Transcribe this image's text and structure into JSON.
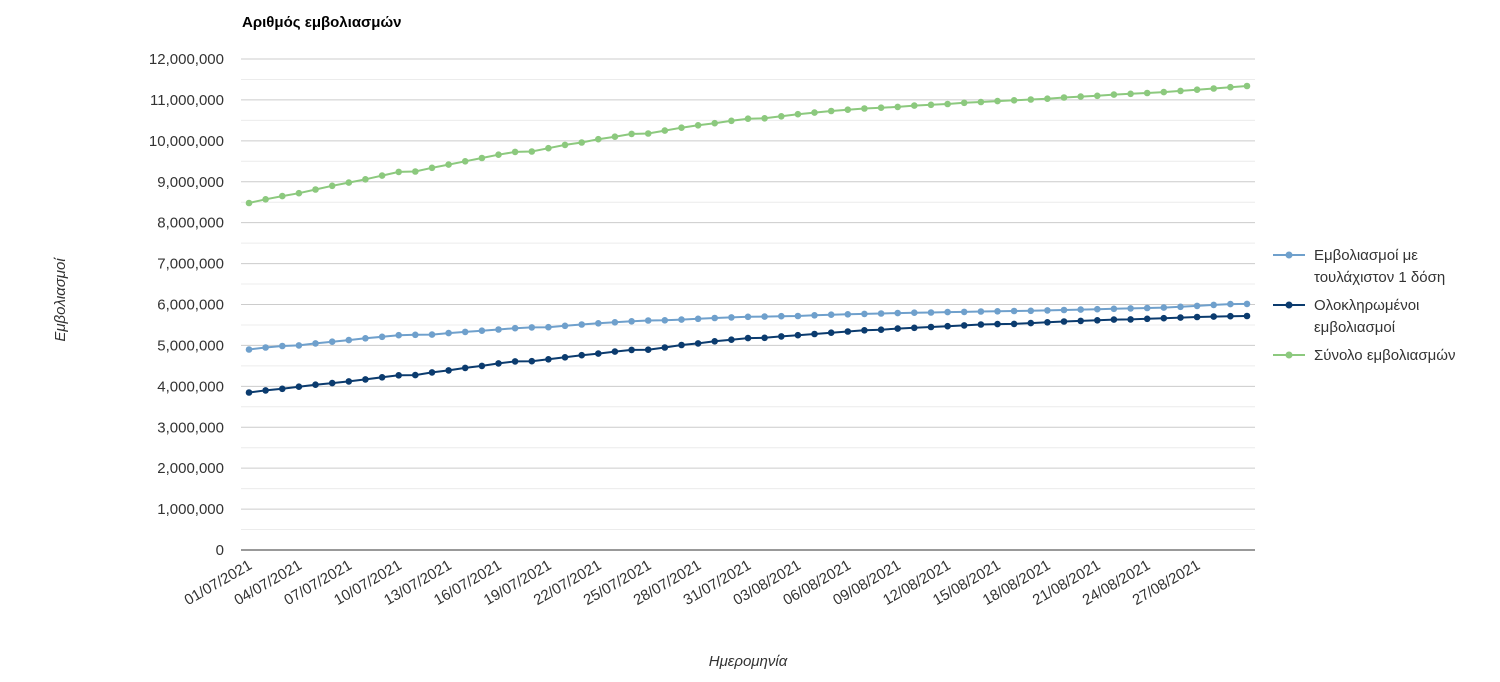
{
  "chart_data": {
    "type": "line",
    "title": "Αριθμός εμβολιασμών",
    "xlabel": "Ημερομηνία",
    "ylabel": "Εμβολιασμοί",
    "ylim": [
      0,
      12000000
    ],
    "y_ticks": [
      0,
      1000000,
      2000000,
      3000000,
      4000000,
      5000000,
      6000000,
      7000000,
      8000000,
      9000000,
      10000000,
      11000000,
      12000000
    ],
    "y_tick_labels": [
      "0",
      "1,000,000",
      "2,000,000",
      "3,000,000",
      "4,000,000",
      "5,000,000",
      "6,000,000",
      "7,000,000",
      "8,000,000",
      "9,000,000",
      "10,000,000",
      "11,000,000",
      "12,000,000"
    ],
    "x": [
      "01/07/2021",
      "02/07/2021",
      "03/07/2021",
      "04/07/2021",
      "05/07/2021",
      "06/07/2021",
      "07/07/2021",
      "08/07/2021",
      "09/07/2021",
      "10/07/2021",
      "11/07/2021",
      "12/07/2021",
      "13/07/2021",
      "14/07/2021",
      "15/07/2021",
      "16/07/2021",
      "17/07/2021",
      "18/07/2021",
      "19/07/2021",
      "20/07/2021",
      "21/07/2021",
      "22/07/2021",
      "23/07/2021",
      "24/07/2021",
      "25/07/2021",
      "26/07/2021",
      "27/07/2021",
      "28/07/2021",
      "29/07/2021",
      "30/07/2021",
      "31/07/2021",
      "01/08/2021",
      "02/08/2021",
      "03/08/2021",
      "04/08/2021",
      "05/08/2021",
      "06/08/2021",
      "07/08/2021",
      "08/08/2021",
      "09/08/2021",
      "10/08/2021",
      "11/08/2021",
      "12/08/2021",
      "13/08/2021",
      "14/08/2021",
      "15/08/2021",
      "16/08/2021",
      "17/08/2021",
      "18/08/2021",
      "19/08/2021",
      "20/08/2021",
      "21/08/2021",
      "22/08/2021",
      "23/08/2021",
      "24/08/2021",
      "25/08/2021",
      "26/08/2021",
      "27/08/2021",
      "28/08/2021",
      "29/08/2021",
      "30/08/2021"
    ],
    "x_tick_labels": [
      "01/07/2021",
      "04/07/2021",
      "07/07/2021",
      "10/07/2021",
      "13/07/2021",
      "16/07/2021",
      "19/07/2021",
      "22/07/2021",
      "25/07/2021",
      "28/07/2021",
      "31/07/2021",
      "03/08/2021",
      "06/08/2021",
      "09/08/2021",
      "12/08/2021",
      "15/08/2021",
      "18/08/2021",
      "21/08/2021",
      "24/08/2021",
      "27/08/2021"
    ],
    "legend_position": "right",
    "grid": true,
    "series": [
      {
        "name": "Εμβολιασμοί με τουλάχιστον 1 δόση",
        "name_lines": [
          "Εμβολιασμοί με",
          "τουλάχιστον 1 δόση"
        ],
        "color": "#6fa0cc",
        "values": [
          4900000,
          4950000,
          4985000,
          5000000,
          5050000,
          5090000,
          5130000,
          5175000,
          5210000,
          5250000,
          5260000,
          5265000,
          5300000,
          5330000,
          5360000,
          5390000,
          5420000,
          5440000,
          5445000,
          5480000,
          5510000,
          5540000,
          5565000,
          5590000,
          5610000,
          5615000,
          5630000,
          5650000,
          5670000,
          5685000,
          5700000,
          5705000,
          5715000,
          5720000,
          5735000,
          5750000,
          5760000,
          5770000,
          5780000,
          5790000,
          5800000,
          5805000,
          5815000,
          5820000,
          5830000,
          5835000,
          5840000,
          5845000,
          5855000,
          5865000,
          5875000,
          5885000,
          5895000,
          5905000,
          5915000,
          5925000,
          5945000,
          5965000,
          5990000,
          6010000,
          6015000
        ]
      },
      {
        "name": "Ολοκληρωμένοι εμβολιασμοί",
        "name_lines": [
          "Ολοκληρωμένοι",
          "εμβολιασμοί"
        ],
        "color": "#0b3b6e",
        "values": [
          3850000,
          3900000,
          3940000,
          3990000,
          4040000,
          4080000,
          4120000,
          4170000,
          4220000,
          4270000,
          4275000,
          4340000,
          4390000,
          4450000,
          4500000,
          4560000,
          4610000,
          4615000,
          4660000,
          4710000,
          4760000,
          4800000,
          4850000,
          4890000,
          4895000,
          4950000,
          5010000,
          5050000,
          5100000,
          5140000,
          5180000,
          5185000,
          5220000,
          5250000,
          5280000,
          5310000,
          5340000,
          5370000,
          5385000,
          5410000,
          5430000,
          5450000,
          5470000,
          5490000,
          5510000,
          5520000,
          5525000,
          5545000,
          5565000,
          5585000,
          5600000,
          5615000,
          5630000,
          5635000,
          5650000,
          5665000,
          5680000,
          5695000,
          5705000,
          5715000,
          5720000
        ]
      },
      {
        "name": "Σύνολο εμβολιασμών",
        "name_lines": [
          "Σύνολο εμβολιασμών"
        ],
        "color": "#8cc97e",
        "values": [
          8480000,
          8570000,
          8650000,
          8720000,
          8810000,
          8900000,
          8980000,
          9060000,
          9150000,
          9240000,
          9250000,
          9340000,
          9420000,
          9500000,
          9580000,
          9660000,
          9730000,
          9740000,
          9820000,
          9900000,
          9960000,
          10040000,
          10100000,
          10170000,
          10180000,
          10250000,
          10320000,
          10380000,
          10430000,
          10490000,
          10540000,
          10550000,
          10600000,
          10650000,
          10690000,
          10730000,
          10760000,
          10790000,
          10810000,
          10830000,
          10860000,
          10880000,
          10900000,
          10930000,
          10950000,
          10970000,
          10990000,
          11010000,
          11030000,
          11060000,
          11080000,
          11100000,
          11130000,
          11150000,
          11170000,
          11190000,
          11220000,
          11250000,
          11280000,
          11310000,
          11340000
        ]
      }
    ]
  }
}
